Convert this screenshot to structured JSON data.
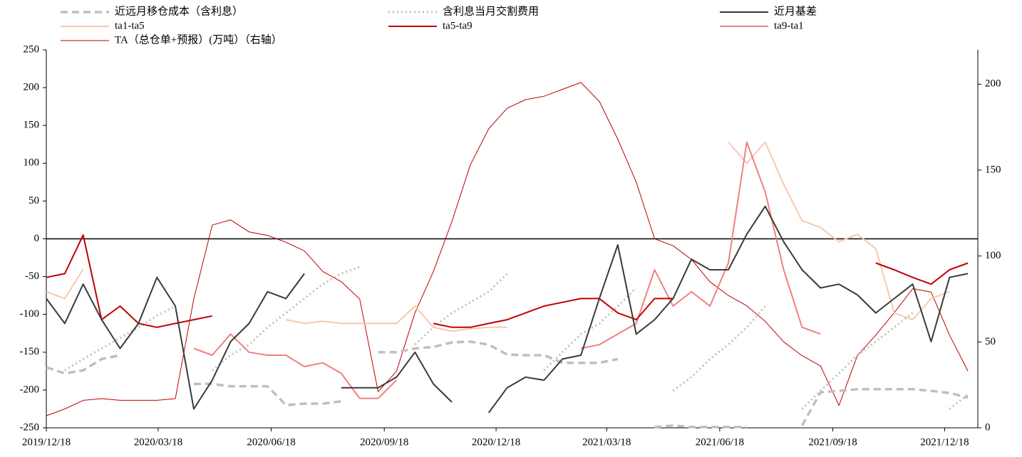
{
  "chart_data": {
    "type": "line",
    "x": [
      0,
      15,
      30,
      45,
      60,
      75,
      90,
      105,
      120,
      135,
      150,
      165,
      180,
      195,
      210,
      225,
      240,
      255,
      270,
      285,
      300,
      315,
      330,
      345,
      360,
      375,
      390,
      405,
      420,
      435,
      450,
      465,
      480,
      495,
      510,
      525,
      540,
      555,
      570,
      585,
      600,
      615,
      630,
      645,
      660,
      675,
      690,
      705,
      720,
      735,
      750
    ],
    "xlim": [
      0,
      758
    ],
    "xticks": [
      {
        "value": 0,
        "label": "2019/12/18"
      },
      {
        "value": 91,
        "label": "2020/03/18"
      },
      {
        "value": 183,
        "label": "2020/06/18"
      },
      {
        "value": 275,
        "label": "2020/09/18"
      },
      {
        "value": 366,
        "label": "2020/12/18"
      },
      {
        "value": 456,
        "label": "2021/03/18"
      },
      {
        "value": 548,
        "label": "2021/06/18"
      },
      {
        "value": 640,
        "label": "2021/09/18"
      },
      {
        "value": 731,
        "label": "2021/12/18"
      }
    ],
    "ylim": [
      -250,
      250
    ],
    "yticks": [
      -250,
      -200,
      -150,
      -100,
      -50,
      0,
      50,
      100,
      150,
      200,
      250
    ],
    "y2lim": [
      0,
      220
    ],
    "y2ticks": [
      0,
      50,
      100,
      150,
      200
    ],
    "series": [
      {
        "name": "近远月移仓成本（含利息）",
        "color": "#bfbfbf",
        "dash": "dashed",
        "values": [
          -170,
          -178,
          -174,
          -159,
          -154,
          null,
          null,
          null,
          -192,
          -192,
          -195,
          -195,
          -195,
          -220,
          -218,
          -218,
          -215,
          null,
          -150,
          -150,
          -145,
          -143,
          -137,
          -136,
          -140,
          -153,
          -154,
          -154,
          -164,
          -164,
          -164,
          -159,
          null,
          -249,
          -247,
          -249,
          -249,
          -249,
          -249,
          null,
          null,
          -247,
          -203,
          -201,
          -199,
          -199,
          -199,
          -199,
          -201,
          -204,
          -210
        ]
      },
      {
        "name": "含利息当月交割费用",
        "color": "#bfbfbf",
        "dash": "dotted",
        "values": [
          null,
          -174,
          -159,
          -145,
          -131,
          -117,
          -102,
          -89,
          null,
          -174,
          -154,
          -140,
          -117,
          -98,
          -79,
          -60,
          -46,
          -37,
          null,
          null,
          -140,
          -117,
          -98,
          -84,
          -70,
          -46,
          null,
          -174,
          -150,
          -126,
          -112,
          -89,
          -65,
          null,
          -201,
          -183,
          -159,
          -140,
          -117,
          -89,
          null,
          -225,
          -201,
          -178,
          -154,
          -136,
          -117,
          -98,
          null,
          -225,
          -206
        ]
      },
      {
        "name": "近月基差",
        "color": "#3a3a3a",
        "dash": "solid",
        "values": [
          -79,
          -112,
          -60,
          -107,
          -145,
          -112,
          -51,
          -89,
          -225,
          -187,
          -136,
          -112,
          -70,
          -79,
          -46,
          null,
          -197,
          -197,
          -197,
          -183,
          -150,
          -192,
          -216,
          null,
          -230,
          -197,
          -183,
          -187,
          -159,
          -154,
          -79,
          -8,
          -126,
          -107,
          -79,
          -27,
          -41,
          -41,
          6,
          43,
          -4,
          -41,
          -65,
          -60,
          -74,
          -98,
          -79,
          -60,
          -136,
          -51,
          -46
        ]
      },
      {
        "name": "ta1-ta5",
        "color": "#f8c8b0",
        "dash": "solid",
        "values": [
          -70,
          -79,
          -40,
          null,
          null,
          null,
          null,
          null,
          null,
          null,
          null,
          null,
          null,
          -107,
          -112,
          -109,
          -112,
          -112,
          -112,
          -112,
          -89,
          -117,
          -122,
          -119,
          -117,
          -117,
          null,
          null,
          null,
          null,
          null,
          null,
          null,
          null,
          null,
          null,
          null,
          128,
          100,
          128,
          72,
          24,
          15,
          -4,
          6,
          -13,
          -98,
          -107,
          -79,
          -70,
          null
        ]
      },
      {
        "name": "ta5-ta9",
        "color": "#c00000",
        "dash": "solid",
        "values": [
          -51,
          -46,
          5,
          -107,
          -89,
          -112,
          -117,
          -112,
          -107,
          -102,
          null,
          null,
          null,
          null,
          null,
          null,
          null,
          null,
          null,
          null,
          null,
          -112,
          -117,
          -117,
          -112,
          -107,
          -98,
          -89,
          -84,
          -79,
          -79,
          -98,
          -107,
          -79,
          -79,
          null,
          null,
          null,
          null,
          null,
          null,
          null,
          null,
          null,
          null,
          -32,
          -41,
          -51,
          -60,
          -41,
          -32
        ]
      },
      {
        "name": "ta9-ta1",
        "color": "#f08080",
        "dash": "solid",
        "values": [
          null,
          null,
          null,
          null,
          null,
          null,
          null,
          null,
          -145,
          -154,
          -126,
          -150,
          -154,
          -154,
          -169,
          -164,
          -178,
          -211,
          -211,
          -187,
          null,
          null,
          null,
          null,
          null,
          null,
          null,
          null,
          null,
          -145,
          -140,
          -126,
          -112,
          -41,
          -89,
          -70,
          -89,
          -32,
          128,
          62,
          -41,
          -117,
          -126,
          null,
          null,
          null,
          null,
          null,
          null,
          null,
          null
        ]
      },
      {
        "name": "TA（总仓单+预报）(万吨）（右轴）",
        "color": "#c00000",
        "dash": "thin",
        "axis": "y2",
        "values": [
          7,
          11,
          16,
          17,
          16,
          16,
          16,
          17,
          75,
          118,
          121,
          114,
          112,
          108,
          103,
          91,
          85,
          75,
          21,
          33,
          67,
          91,
          120,
          153,
          174,
          186,
          191,
          193,
          197,
          201,
          190,
          168,
          143,
          110,
          106,
          98,
          85,
          77,
          71,
          62,
          50,
          42,
          36,
          13,
          42,
          54,
          67,
          81,
          79,
          54,
          33
        ]
      }
    ]
  }
}
